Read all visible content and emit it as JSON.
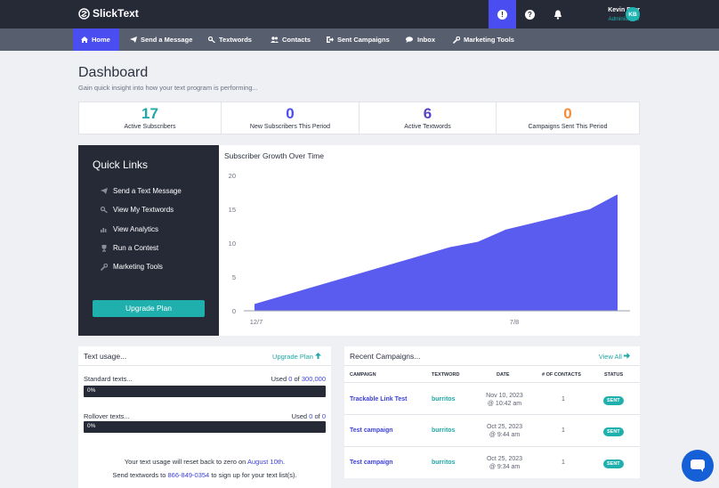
{
  "app": {
    "name": "SlickText"
  },
  "user": {
    "name": "Kevin Burr",
    "role": "Administrator",
    "initials": "KB"
  },
  "top_icons": [
    "alert-icon",
    "help-icon",
    "bell-icon"
  ],
  "nav": [
    {
      "label": "Home",
      "icon": "home-icon",
      "active": true
    },
    {
      "label": "Send a Message",
      "icon": "paper-plane-icon"
    },
    {
      "label": "Textwords",
      "icon": "key-icon"
    },
    {
      "label": "Contacts",
      "icon": "users-icon"
    },
    {
      "label": "Sent Campaigns",
      "icon": "sign-out-icon"
    },
    {
      "label": "Inbox",
      "icon": "comments-icon"
    },
    {
      "label": "Marketing Tools",
      "icon": "wrench-icon"
    }
  ],
  "header": {
    "title": "Dashboard",
    "subtitle": "Gain quick insight into how your text program is performing..."
  },
  "stats": [
    {
      "value": "17",
      "label": "Active Subscribers",
      "color": "#1fa8a6"
    },
    {
      "value": "0",
      "label": "New Subscribers This Period",
      "color": "#4a4ef0"
    },
    {
      "value": "6",
      "label": "Active Textwords",
      "color": "#5a40c8"
    },
    {
      "value": "0",
      "label": "Campaigns Sent This Period",
      "color": "#f28c38"
    }
  ],
  "quick_links": {
    "title": "Quick Links",
    "items": [
      {
        "label": "Send a Text Message",
        "icon": "paper-plane-icon"
      },
      {
        "label": "View My Textwords",
        "icon": "key-icon"
      },
      {
        "label": "View Analytics",
        "icon": "bar-chart-icon"
      },
      {
        "label": "Run a Contest",
        "icon": "trophy-icon"
      },
      {
        "label": "Marketing Tools",
        "icon": "wrench-icon"
      }
    ],
    "button": "Upgrade Plan"
  },
  "chart_data": {
    "type": "area",
    "title": "Subscriber Growth Over Time",
    "x_tick_labels": [
      "12/7",
      "7/8"
    ],
    "y_ticks": [
      0,
      5,
      10,
      15,
      20
    ],
    "ylim": [
      0,
      20
    ],
    "series": [
      {
        "values": [
          1,
          2.2,
          3.4,
          4.6,
          5.8,
          7,
          8.2,
          9.4,
          10.2,
          12,
          13,
          14,
          15,
          17.2
        ]
      }
    ],
    "fill_color": "#5a5cf0",
    "grid": false
  },
  "text_usage": {
    "title": "Text usage...",
    "upgrade_link": "Upgrade Plan",
    "standard": {
      "label": "Standard texts...",
      "used_prefix": "Used",
      "used": "0",
      "of": "of",
      "total": "300,000",
      "percent": "0%"
    },
    "rollover": {
      "label": "Rollover texts...",
      "used_prefix": "Used",
      "used": "0",
      "of": "of",
      "total": "0",
      "percent": "0%"
    },
    "note1_prefix": "Your text usage will reset back to zero on",
    "note1_date": "August 10th",
    "note1_suffix": ".",
    "note2_prefix": "Send textwords to",
    "note2_phone": "866-849-0354",
    "note2_suffix": "to sign up for your text list(s)."
  },
  "campaigns": {
    "title": "Recent Campaigns...",
    "view_all": "View All",
    "columns": [
      "CAMPAIGN",
      "TEXTWORD",
      "DATE",
      "# OF CONTACTS",
      "STATUS"
    ],
    "rows": [
      {
        "name": "Trackable Link Test",
        "textword": "burritos",
        "date": "Nov 10, 2023",
        "time": "@ 10:42 am",
        "contacts": "1",
        "status": "SENT"
      },
      {
        "name": "Test campaign",
        "textword": "burritos",
        "date": "Oct 25, 2023",
        "time": "@ 9:44 am",
        "contacts": "1",
        "status": "SENT"
      },
      {
        "name": "Test campaign",
        "textword": "burritos",
        "date": "Oct 25, 2023",
        "time": "@ 9:34 am",
        "contacts": "1",
        "status": "SENT"
      }
    ]
  }
}
